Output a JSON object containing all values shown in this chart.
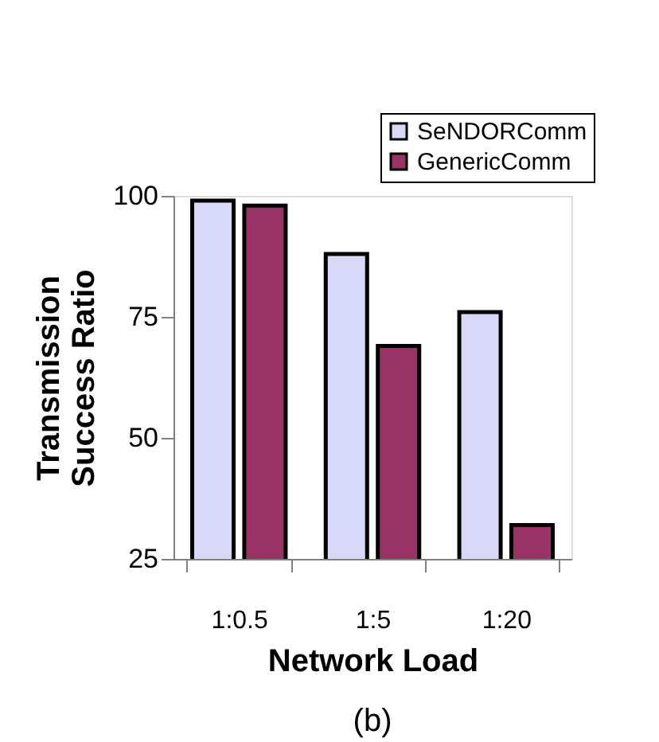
{
  "chart_data": {
    "type": "bar",
    "xlabel": "Network Load",
    "ylabel": "Transmission\nSuccess Ratio",
    "categories": [
      "1:0.5",
      "1:5",
      "1:20"
    ],
    "series": [
      {
        "name": "SeNDORComm",
        "color": "#d8d8f8",
        "values": [
          99,
          88,
          76
        ]
      },
      {
        "name": "GenericComm",
        "color": "#993366",
        "values": [
          98,
          69,
          32
        ]
      }
    ],
    "ylim": [
      25,
      100
    ],
    "yticks": [
      25,
      50,
      75,
      100
    ],
    "grid": false,
    "legend": "top right",
    "annotations": [
      "(b)"
    ]
  }
}
